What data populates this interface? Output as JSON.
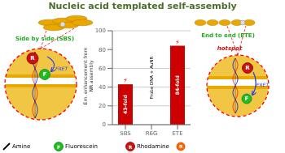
{
  "chart_data": {
    "type": "bar",
    "title": "Nucleic acid templated self-assembly",
    "categories": [
      "SBS",
      "R6G",
      "ETE"
    ],
    "values": [
      43,
      0,
      84
    ],
    "value_labels": [
      "43-fold",
      null,
      "84-fold"
    ],
    "color": "#cc0000",
    "ylabel": "Em. enhancement from\nNR assembly",
    "ylim": [
      0,
      100
    ],
    "yticks": [
      0,
      20,
      40,
      60,
      80,
      100
    ],
    "grid": true,
    "annotations": [
      "Side by side (SBS)",
      "End to end (ETE)",
      "hotspot",
      "FRET",
      "F",
      "R",
      "Probe DNA + AuNR",
      "⚡",
      "Amine",
      "Fluorescein",
      "Rhodamine"
    ]
  }
}
